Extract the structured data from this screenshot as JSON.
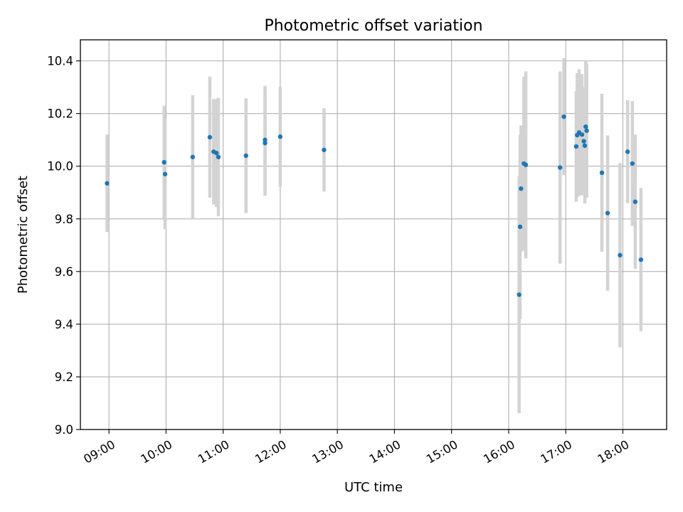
{
  "chart_data": {
    "type": "scatter",
    "title": "Photometric offset variation",
    "xlabel": "UTC time",
    "ylabel": "Photometric offset",
    "x_ticks": [
      "09:00",
      "10:00",
      "11:00",
      "12:00",
      "13:00",
      "14:00",
      "15:00",
      "16:00",
      "17:00",
      "18:00"
    ],
    "y_ticks": [
      "9.0",
      "9.2",
      "9.4",
      "9.6",
      "9.8",
      "10.0",
      "10.2",
      "10.4"
    ],
    "xlim": [
      "08:30",
      "18:46"
    ],
    "ylim": [
      9.0,
      10.48
    ],
    "grid": true,
    "colors": {
      "points": "#1f77b4",
      "errorbars": "#d3d3d3"
    },
    "points": [
      {
        "x": "08:58",
        "y": 9.935,
        "err": 0.185
      },
      {
        "x": "09:58",
        "y": 10.015,
        "err": 0.215
      },
      {
        "x": "09:59",
        "y": 9.97,
        "err": 0.21
      },
      {
        "x": "10:28",
        "y": 10.035,
        "err": 0.235
      },
      {
        "x": "10:46",
        "y": 10.11,
        "err": 0.23
      },
      {
        "x": "10:50",
        "y": 10.055,
        "err": 0.2
      },
      {
        "x": "10:53",
        "y": 10.05,
        "err": 0.205
      },
      {
        "x": "10:55",
        "y": 10.035,
        "err": 0.225
      },
      {
        "x": "11:24",
        "y": 10.04,
        "err": 0.218
      },
      {
        "x": "11:44",
        "y": 10.1,
        "err": 0.205
      },
      {
        "x": "11:44",
        "y": 10.088,
        "err": 0.2
      },
      {
        "x": "12:00",
        "y": 10.112,
        "err": 0.19
      },
      {
        "x": "12:46",
        "y": 10.062,
        "err": 0.158
      },
      {
        "x": "16:11",
        "y": 9.512,
        "err": 0.45
      },
      {
        "x": "16:12",
        "y": 9.77,
        "err": 0.35
      },
      {
        "x": "16:13",
        "y": 9.915,
        "err": 0.24
      },
      {
        "x": "16:16",
        "y": 10.01,
        "err": 0.33
      },
      {
        "x": "16:18",
        "y": 10.005,
        "err": 0.355
      },
      {
        "x": "16:54",
        "y": 9.995,
        "err": 0.365
      },
      {
        "x": "16:58",
        "y": 10.188,
        "err": 0.222
      },
      {
        "x": "17:11",
        "y": 10.075,
        "err": 0.21
      },
      {
        "x": "17:12",
        "y": 10.118,
        "err": 0.235
      },
      {
        "x": "17:14",
        "y": 10.128,
        "err": 0.24
      },
      {
        "x": "17:17",
        "y": 10.12,
        "err": 0.23
      },
      {
        "x": "17:19",
        "y": 10.095,
        "err": 0.205
      },
      {
        "x": "17:20",
        "y": 10.078,
        "err": 0.22
      },
      {
        "x": "17:21",
        "y": 10.15,
        "err": 0.25
      },
      {
        "x": "17:22",
        "y": 10.135,
        "err": 0.255
      },
      {
        "x": "17:38",
        "y": 9.975,
        "err": 0.3
      },
      {
        "x": "17:44",
        "y": 9.822,
        "err": 0.295
      },
      {
        "x": "17:57",
        "y": 9.662,
        "err": 0.35
      },
      {
        "x": "18:05",
        "y": 10.055,
        "err": 0.195
      },
      {
        "x": "18:10",
        "y": 10.01,
        "err": 0.237
      },
      {
        "x": "18:13",
        "y": 9.865,
        "err": 0.255
      },
      {
        "x": "18:19",
        "y": 9.645,
        "err": 0.272
      }
    ]
  }
}
